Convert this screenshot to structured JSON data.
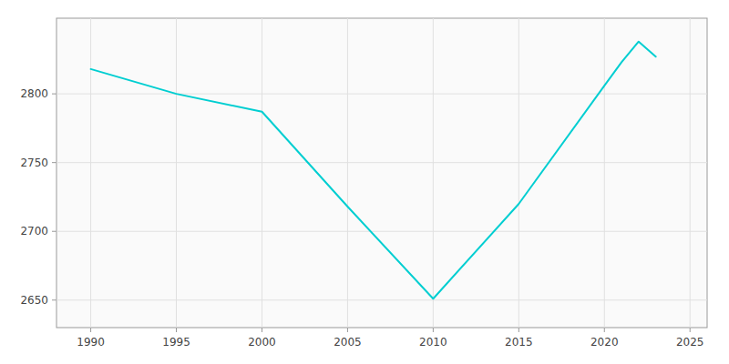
{
  "chart_data": {
    "type": "line",
    "x": [
      1990,
      1995,
      2000,
      2005,
      2010,
      2015,
      2020,
      2021,
      2022,
      2023
    ],
    "values": [
      2818,
      2800,
      2787,
      2718,
      2651,
      2720,
      2806,
      2823,
      2838,
      2827
    ],
    "color": "#00CED1",
    "xlim": [
      1988,
      2026
    ],
    "ylim": [
      2630,
      2855
    ],
    "xticks": [
      1990,
      1995,
      2000,
      2005,
      2010,
      2015,
      2020,
      2025
    ],
    "yticks": [
      2650,
      2700,
      2750,
      2800
    ],
    "grid": true
  }
}
